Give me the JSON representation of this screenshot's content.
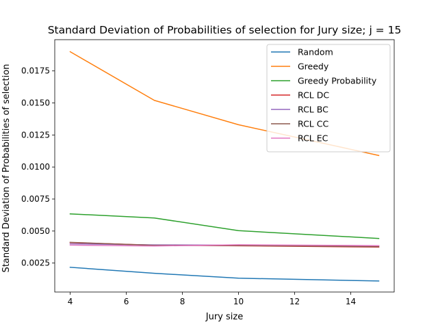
{
  "chart_data": {
    "type": "line",
    "title": "Standard Deviation of Probabilities of selection for Jury size; j = 15",
    "xlabel": "Jury size",
    "ylabel": "Standard Deviation of Probabilities of selection",
    "xlim": [
      3.45,
      15.55
    ],
    "ylim": [
      0.00024,
      0.01994
    ],
    "x_ticks": [
      4,
      6,
      8,
      10,
      12,
      14
    ],
    "x_tick_labels": [
      "4",
      "6",
      "8",
      "10",
      "12",
      "14"
    ],
    "y_ticks": [
      0.0025,
      0.005,
      0.0075,
      0.01,
      0.0125,
      0.015,
      0.0175
    ],
    "y_tick_labels": [
      "0.0025",
      "0.0050",
      "0.0075",
      "0.0100",
      "0.0125",
      "0.0150",
      "0.0175"
    ],
    "grid": false,
    "legend_position": "top-right",
    "x": [
      4,
      7,
      10,
      15
    ],
    "series": [
      {
        "name": "Random",
        "color": "#1f77b4",
        "values": [
          0.00217,
          0.0017,
          0.00132,
          0.0011
        ]
      },
      {
        "name": "Greedy",
        "color": "#ff7f0e",
        "values": [
          0.019,
          0.0152,
          0.0133,
          0.0109
        ]
      },
      {
        "name": "Greedy Probability",
        "color": "#2ca02c",
        "values": [
          0.00634,
          0.00602,
          0.00503,
          0.00442
        ]
      },
      {
        "name": "RCL DC",
        "color": "#d62728",
        "values": [
          0.0041,
          0.0039,
          0.00385,
          0.00375
        ]
      },
      {
        "name": "RCL BC",
        "color": "#9467bd",
        "values": [
          0.004,
          0.00392,
          0.0039,
          0.00385
        ]
      },
      {
        "name": "RCL CC",
        "color": "#8c564b",
        "values": [
          0.00412,
          0.00388,
          0.00387,
          0.00378
        ]
      },
      {
        "name": "RCL EC",
        "color": "#e377c2",
        "values": [
          0.0039,
          0.00383,
          0.00393,
          0.00386
        ]
      }
    ]
  }
}
